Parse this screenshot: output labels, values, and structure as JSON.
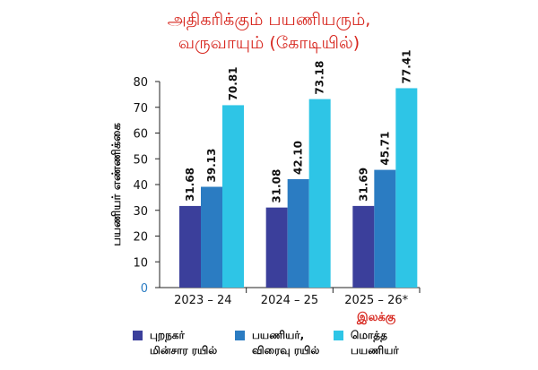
{
  "title": [
    "அதிகரிக்கும் பயணியரும்,",
    "வருவாயும் (கோடியில்)"
  ],
  "chart_data": {
    "type": "bar",
    "categories": [
      "2023 – 24",
      "2024 – 25",
      "2025 – 26*"
    ],
    "series": [
      {
        "name": "புறநகர் மின்சார ரயில்",
        "values": [
          31.68,
          31.08,
          31.69
        ],
        "color": "#3b3f9b"
      },
      {
        "name": "பயணியர், விரைவு ரயில்",
        "values": [
          39.13,
          42.1,
          45.71
        ],
        "color": "#2b7cc2"
      },
      {
        "name": "மொத்த பயணியர்",
        "values": [
          70.81,
          73.18,
          77.41
        ],
        "color": "#2ec5e6"
      }
    ],
    "ylabel": "பயணியர் எண்ணிக்கை",
    "ylim": [
      0,
      80
    ],
    "yticks": [
      0,
      10,
      20,
      30,
      40,
      50,
      60,
      70,
      80
    ],
    "annotation": "இலக்கு",
    "grid": false
  },
  "legend": [
    {
      "lines": [
        "புறநகர்",
        "மின்சார ரயில்"
      ]
    },
    {
      "lines": [
        "பயணியர்,",
        "விரைவு ரயில்"
      ]
    },
    {
      "lines": [
        "மொத்த",
        "பயணியர்"
      ]
    }
  ],
  "colors": {
    "title": "#d7261e",
    "annotation": "#d7261e",
    "zero_tick": "#2b7cc2"
  }
}
